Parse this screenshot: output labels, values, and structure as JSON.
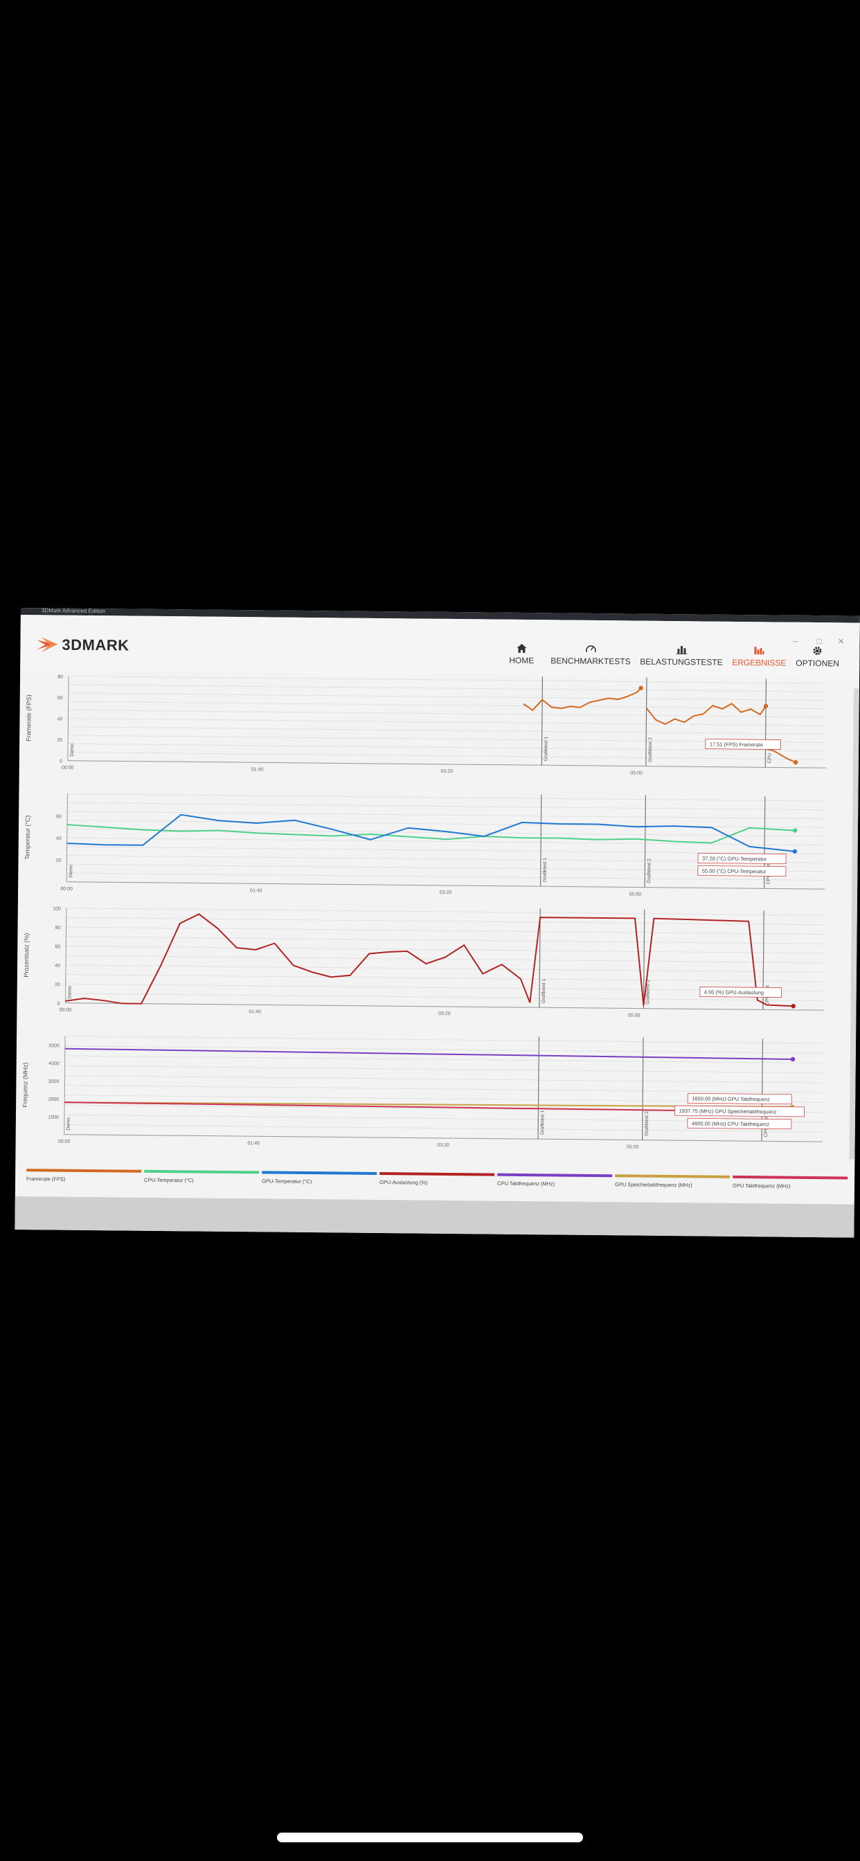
{
  "window_title": "3DMark Advanced Edition",
  "app": {
    "logo_text": "3DMARK"
  },
  "nav": [
    {
      "label": "HOME",
      "icon": "home-icon"
    },
    {
      "label": "BENCHMARKTESTS",
      "icon": "gauge-icon"
    },
    {
      "label": "BELASTUNGSTESTE",
      "icon": "bar-chart-icon"
    },
    {
      "label": "ERGEBNISSE",
      "icon": "results-icon",
      "active": true
    },
    {
      "label": "OPTIONEN",
      "icon": "gear-icon"
    }
  ],
  "colors": {
    "framerate": "#d2691e",
    "cpu_temp": "#4dd08a",
    "gpu_temp": "#1f78d1",
    "gpu_load": "#b22222",
    "cpu_clock": "#7b3fc4",
    "gpu_mem_clock": "#c8a040",
    "gpu_clock": "#cc3355",
    "active_nav": "#e4572e"
  },
  "chart_data": [
    {
      "type": "line",
      "ylabel": "Framerate (FPS)",
      "ylim": [
        0,
        80
      ],
      "y_ticks": [
        "0",
        "20",
        "40",
        "60",
        "80"
      ],
      "x_ticks": [
        "00:00",
        "01:40",
        "03:20",
        "05:00"
      ],
      "sections": [
        "Demo",
        "Grafiktest 1",
        "Grafiktest 2",
        "CPU"
      ],
      "series": [
        {
          "name": "Framerate (FPS)",
          "x": [
            240,
            245,
            250,
            255,
            260,
            265,
            270,
            275,
            280,
            285,
            290,
            295,
            300,
            302
          ],
          "y": [
            58,
            52,
            62,
            55,
            54,
            56,
            55,
            60,
            62,
            64,
            63,
            66,
            70,
            74
          ]
        },
        {
          "name": "",
          "x": [
            305,
            310,
            315,
            320,
            325,
            330,
            335,
            340,
            345,
            350,
            355,
            360,
            365,
            368
          ],
          "y": [
            55,
            44,
            40,
            45,
            42,
            48,
            50,
            58,
            55,
            60,
            52,
            55,
            50,
            58
          ]
        },
        {
          "name": "",
          "x": [
            368,
            372,
            376,
            380,
            384
          ],
          "y": [
            17.5,
            16,
            12,
            8,
            5
          ]
        }
      ],
      "callouts": [
        "17.51 (FPS) Framerate"
      ]
    },
    {
      "type": "line",
      "ylabel": "Temperatur (°C)",
      "ylim": [
        0,
        80
      ],
      "y_ticks": [
        "20",
        "40",
        "60"
      ],
      "x_ticks": [
        "00:00",
        "01:40",
        "03:20",
        "05:00"
      ],
      "sections": [
        "Demo",
        "Grafiktest 1",
        "Grafiktest 2",
        "CPU Test"
      ],
      "series": [
        {
          "name": "CPU-Temperatur (°C)",
          "x": [
            0,
            20,
            40,
            60,
            80,
            100,
            120,
            140,
            160,
            180,
            200,
            220,
            240,
            260,
            280,
            300,
            320,
            340,
            360,
            384
          ],
          "y": [
            52,
            50,
            48,
            47,
            48,
            46,
            45,
            44,
            46,
            44,
            42,
            45,
            44,
            44,
            43,
            44,
            42,
            41,
            55,
            53
          ]
        },
        {
          "name": "GPU-Temperatur (°C)",
          "x": [
            0,
            20,
            40,
            60,
            80,
            100,
            120,
            140,
            160,
            180,
            200,
            220,
            240,
            260,
            280,
            300,
            320,
            340,
            360,
            384
          ],
          "y": [
            35,
            34,
            34,
            62,
            57,
            55,
            58,
            50,
            41,
            52,
            49,
            45,
            58,
            57,
            57,
            55,
            56,
            55,
            38,
            34
          ]
        }
      ],
      "callouts": [
        "55.00 (°C) CPU-Temperatur",
        "37.28 (°C) GPU-Temperatur"
      ]
    },
    {
      "type": "line",
      "ylabel": "Prozentsatz (%)",
      "ylim": [
        0,
        100
      ],
      "y_ticks": [
        "0",
        "20",
        "40",
        "60",
        "80",
        "100"
      ],
      "x_ticks": [
        "00:00",
        "01:40",
        "03:20",
        "05:00"
      ],
      "sections": [
        "Demo",
        "Grafiktest 1",
        "Grafiktest 2",
        "CPU Test"
      ],
      "series": [
        {
          "name": "GPU-Auslastung (%)",
          "x": [
            0,
            10,
            20,
            30,
            40,
            50,
            60,
            70,
            80,
            90,
            100,
            110,
            120,
            130,
            140,
            150,
            160,
            170,
            180,
            190,
            200,
            210,
            220,
            230,
            240,
            245,
            250,
            300,
            305,
            310,
            360,
            365,
            370,
            384
          ],
          "y": [
            2,
            5,
            3,
            0,
            0,
            40,
            85,
            95,
            80,
            60,
            58,
            65,
            42,
            35,
            30,
            32,
            55,
            57,
            58,
            45,
            52,
            65,
            35,
            45,
            30,
            5,
            95,
            95,
            3,
            95,
            93,
            10,
            5,
            4
          ]
        }
      ],
      "callouts": [
        "4.00 (%) GPU-Auslastung"
      ]
    },
    {
      "type": "line",
      "ylabel": "Frequenz (MHz)",
      "ylim": [
        0,
        5500
      ],
      "y_ticks": [
        "1000",
        "2000",
        "3000",
        "4000",
        "5000"
      ],
      "x_ticks": [
        "00:00",
        "01:40",
        "03:20",
        "05:00"
      ],
      "sections": [
        "Demo",
        "Grafiktest 1",
        "Grafiktest 2",
        "CPU Test"
      ],
      "series": [
        {
          "name": "CPU Taktfrequenz (MHz)",
          "x": [
            0,
            384
          ],
          "y": [
            4800,
            4600
          ]
        },
        {
          "name": "GPU Speichertaktfrequenz (MHz)",
          "x": [
            0,
            384
          ],
          "y": [
            1800,
            1937.75
          ]
        },
        {
          "name": "GPU Taktfrequenz (MHz)",
          "x": [
            0,
            384
          ],
          "y": [
            1800,
            1650
          ]
        }
      ],
      "callouts": [
        "4600.00 (MHz) CPU Taktfrequenz",
        "1937.75 (MHz) GPU Speichertaktfrequenz",
        "1650.00 (MHz) GPU Taktfrequenz"
      ]
    }
  ],
  "legend": [
    {
      "label": "Framerate (FPS)",
      "color_key": "framerate"
    },
    {
      "label": "CPU-Temperatur (°C)",
      "color_key": "cpu_temp"
    },
    {
      "label": "GPU-Temperatur (°C)",
      "color_key": "gpu_temp"
    },
    {
      "label": "GPU-Auslastung (%)",
      "color_key": "gpu_load"
    },
    {
      "label": "CPU Taktfrequenz (MHz)",
      "color_key": "cpu_clock"
    },
    {
      "label": "GPU Speichertaktfrequenz (MHz)",
      "color_key": "gpu_mem_clock"
    },
    {
      "label": "GPU Taktfrequenz (MHz)",
      "color_key": "gpu_clock"
    }
  ]
}
